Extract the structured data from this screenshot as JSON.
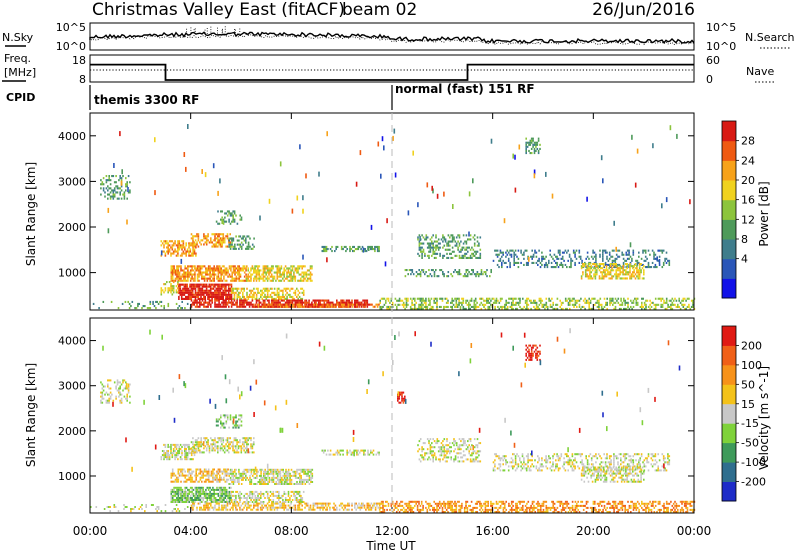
{
  "header": {
    "title": "Christmas Valley East (fitACF)",
    "beam": "beam 02",
    "date": "26/Jun/2016"
  },
  "noise_panel": {
    "left_label": "N.Sky",
    "left_ticks": [
      "10^5",
      "10^0"
    ],
    "right_ticks": [
      "10^5",
      "10^0"
    ],
    "right_label": "N.Search"
  },
  "freq_panel": {
    "left_label_1": "Freq.",
    "left_label_2": "[MHz]",
    "left_ticks": [
      "18",
      "8"
    ],
    "right_ticks": [
      "60",
      "0"
    ],
    "right_label": "Nave",
    "freq_steps": [
      [
        0,
        15
      ],
      [
        3,
        8
      ],
      [
        15,
        15
      ],
      [
        24,
        15
      ]
    ],
    "freq_range": [
      8,
      18
    ]
  },
  "cpid": {
    "label": "CPID",
    "modes": [
      {
        "name": "themis 3300 RF",
        "start_hour": 0
      },
      {
        "name": "normal (fast) 151 RF",
        "start_hour": 12
      }
    ]
  },
  "chart_data": [
    {
      "type": "heatmap",
      "name": "power",
      "ylabel": "Slant Range [km]",
      "y_ticks": [
        "4000",
        "3000",
        "2000",
        "1000"
      ],
      "y_tick_values": [
        4000,
        3000,
        2000,
        1000
      ],
      "ylim": [
        180,
        4500
      ],
      "xlim_hours": [
        0,
        24
      ],
      "colorbar_label": "Power [dB]",
      "colorbar_ticks": [
        "28",
        "24",
        "20",
        "16",
        "12",
        "8",
        "4"
      ],
      "colorbar_colors": [
        "#1212e8",
        "#2a56b8",
        "#3f7d8c",
        "#4e9a5a",
        "#8cc43c",
        "#f0d21e",
        "#f7a21a",
        "#ef5a12",
        "#d81a14"
      ],
      "regions": [
        {
          "h0": 0.4,
          "h1": 1.6,
          "r0": 2600,
          "r1": 3100,
          "c": 3,
          "d": 0.3
        },
        {
          "h0": 2.8,
          "h1": 4.2,
          "r0": 1350,
          "r1": 1700,
          "c": 6,
          "d": 0.55
        },
        {
          "h0": 4.0,
          "h1": 5.6,
          "r0": 1550,
          "r1": 1850,
          "c": 6,
          "d": 0.5
        },
        {
          "h0": 5.5,
          "h1": 6.5,
          "r0": 1500,
          "r1": 1800,
          "c": 3,
          "d": 0.4
        },
        {
          "h0": 5.0,
          "h1": 6.0,
          "r0": 2050,
          "r1": 2350,
          "c": 3,
          "d": 0.35
        },
        {
          "h0": 3.2,
          "h1": 6.2,
          "r0": 800,
          "r1": 1150,
          "c": 6,
          "d": 0.75
        },
        {
          "h0": 6.2,
          "h1": 8.8,
          "r0": 800,
          "r1": 1150,
          "c": 5,
          "d": 0.6
        },
        {
          "h0": 3.5,
          "h1": 5.6,
          "r0": 400,
          "r1": 750,
          "c": 8,
          "d": 0.85
        },
        {
          "h0": 2.8,
          "h1": 3.5,
          "r0": 500,
          "r1": 800,
          "c": 5,
          "d": 0.5
        },
        {
          "h0": 5.6,
          "h1": 8.5,
          "r0": 400,
          "r1": 650,
          "c": 5,
          "d": 0.5
        },
        {
          "h0": 4.0,
          "h1": 11.0,
          "r0": 230,
          "r1": 400,
          "c": 8,
          "d": 0.7
        },
        {
          "h0": 6.5,
          "h1": 11.5,
          "r0": 230,
          "r1": 300,
          "c": 7,
          "d": 0.8
        },
        {
          "h0": 0.0,
          "h1": 4.0,
          "r0": 200,
          "r1": 350,
          "c": 3,
          "d": 0.15
        },
        {
          "h0": 9.2,
          "h1": 11.5,
          "r0": 1450,
          "r1": 1550,
          "c": 3,
          "d": 0.5
        },
        {
          "h0": 11.5,
          "h1": 24.0,
          "r0": 180,
          "r1": 420,
          "c": 4,
          "d": 0.45
        },
        {
          "h0": 13.0,
          "h1": 15.5,
          "r0": 1300,
          "r1": 1800,
          "c": 3,
          "d": 0.35
        },
        {
          "h0": 16.0,
          "h1": 23.0,
          "r0": 1100,
          "r1": 1500,
          "c": 2,
          "d": 0.3
        },
        {
          "h0": 19.5,
          "h1": 22.0,
          "r0": 850,
          "r1": 1200,
          "c": 5,
          "d": 0.55
        },
        {
          "h0": 17.3,
          "h1": 17.9,
          "r0": 3600,
          "r1": 3950,
          "c": 3,
          "d": 0.5
        },
        {
          "h0": 12.5,
          "h1": 16.0,
          "r0": 900,
          "r1": 1050,
          "c": 3,
          "d": 0.35
        }
      ]
    },
    {
      "type": "heatmap",
      "name": "velocity",
      "ylabel": "Slant Range [km]",
      "y_ticks": [
        "4000",
        "3000",
        "2000",
        "1000"
      ],
      "y_tick_values": [
        4000,
        3000,
        2000,
        1000
      ],
      "ylim": [
        180,
        4500
      ],
      "xlim_hours": [
        0,
        24
      ],
      "colorbar_label": "Velocity [m s^-1]",
      "colorbar_ticks": [
        "200",
        "100",
        "50",
        "15",
        "-15",
        "-50",
        "-100",
        "-200"
      ],
      "colorbar_colors": [
        "#1e2cc8",
        "#2f6e8e",
        "#3e9a5a",
        "#7fd23a",
        "#c8c8c8",
        "#f4c21a",
        "#f7921a",
        "#f06018",
        "#e01a14"
      ],
      "regions": [
        {
          "h0": 0.4,
          "h1": 1.6,
          "r0": 2600,
          "r1": 3100,
          "c": 4,
          "d": 0.3
        },
        {
          "h0": 2.8,
          "h1": 4.2,
          "r0": 1350,
          "r1": 1700,
          "c": 4,
          "d": 0.6
        },
        {
          "h0": 4.0,
          "h1": 6.5,
          "r0": 1500,
          "r1": 1850,
          "c": 4,
          "d": 0.55
        },
        {
          "h0": 5.0,
          "h1": 6.0,
          "r0": 2050,
          "r1": 2350,
          "c": 3,
          "d": 0.4
        },
        {
          "h0": 3.2,
          "h1": 5.5,
          "r0": 850,
          "r1": 1150,
          "c": 5,
          "d": 0.6
        },
        {
          "h0": 5.5,
          "h1": 8.8,
          "r0": 800,
          "r1": 1150,
          "c": 4,
          "d": 0.65
        },
        {
          "h0": 3.2,
          "h1": 5.6,
          "r0": 400,
          "r1": 750,
          "c": 3,
          "d": 0.8
        },
        {
          "h0": 5.6,
          "h1": 8.5,
          "r0": 400,
          "r1": 650,
          "c": 4,
          "d": 0.5
        },
        {
          "h0": 4.0,
          "h1": 11.5,
          "r0": 230,
          "r1": 400,
          "c": 5,
          "d": 0.55
        },
        {
          "h0": 11.5,
          "h1": 24.0,
          "r0": 180,
          "r1": 430,
          "c": 6,
          "d": 0.5
        },
        {
          "h0": 13.0,
          "h1": 15.5,
          "r0": 1300,
          "r1": 1800,
          "c": 4,
          "d": 0.35
        },
        {
          "h0": 16.0,
          "h1": 23.0,
          "r0": 1100,
          "r1": 1500,
          "c": 4,
          "d": 0.35
        },
        {
          "h0": 19.5,
          "h1": 22.0,
          "r0": 850,
          "r1": 1200,
          "c": 4,
          "d": 0.5
        },
        {
          "h0": 17.3,
          "h1": 17.9,
          "r0": 3550,
          "r1": 3900,
          "c": 8,
          "d": 0.55
        },
        {
          "h0": 12.2,
          "h1": 12.5,
          "r0": 2600,
          "r1": 2850,
          "c": 8,
          "d": 0.6
        },
        {
          "h0": 9.2,
          "h1": 11.5,
          "r0": 1450,
          "r1": 1550,
          "c": 4,
          "d": 0.5
        },
        {
          "h0": 0.0,
          "h1": 4.0,
          "r0": 200,
          "r1": 350,
          "c": 4,
          "d": 0.15
        }
      ]
    }
  ],
  "x_axis": {
    "ticks": [
      "00:00",
      "04:00",
      "08:00",
      "12:00",
      "16:00",
      "20:00",
      "00:00"
    ],
    "tick_hours": [
      0,
      4,
      8,
      12,
      16,
      20,
      24
    ],
    "label": "Time UT"
  }
}
